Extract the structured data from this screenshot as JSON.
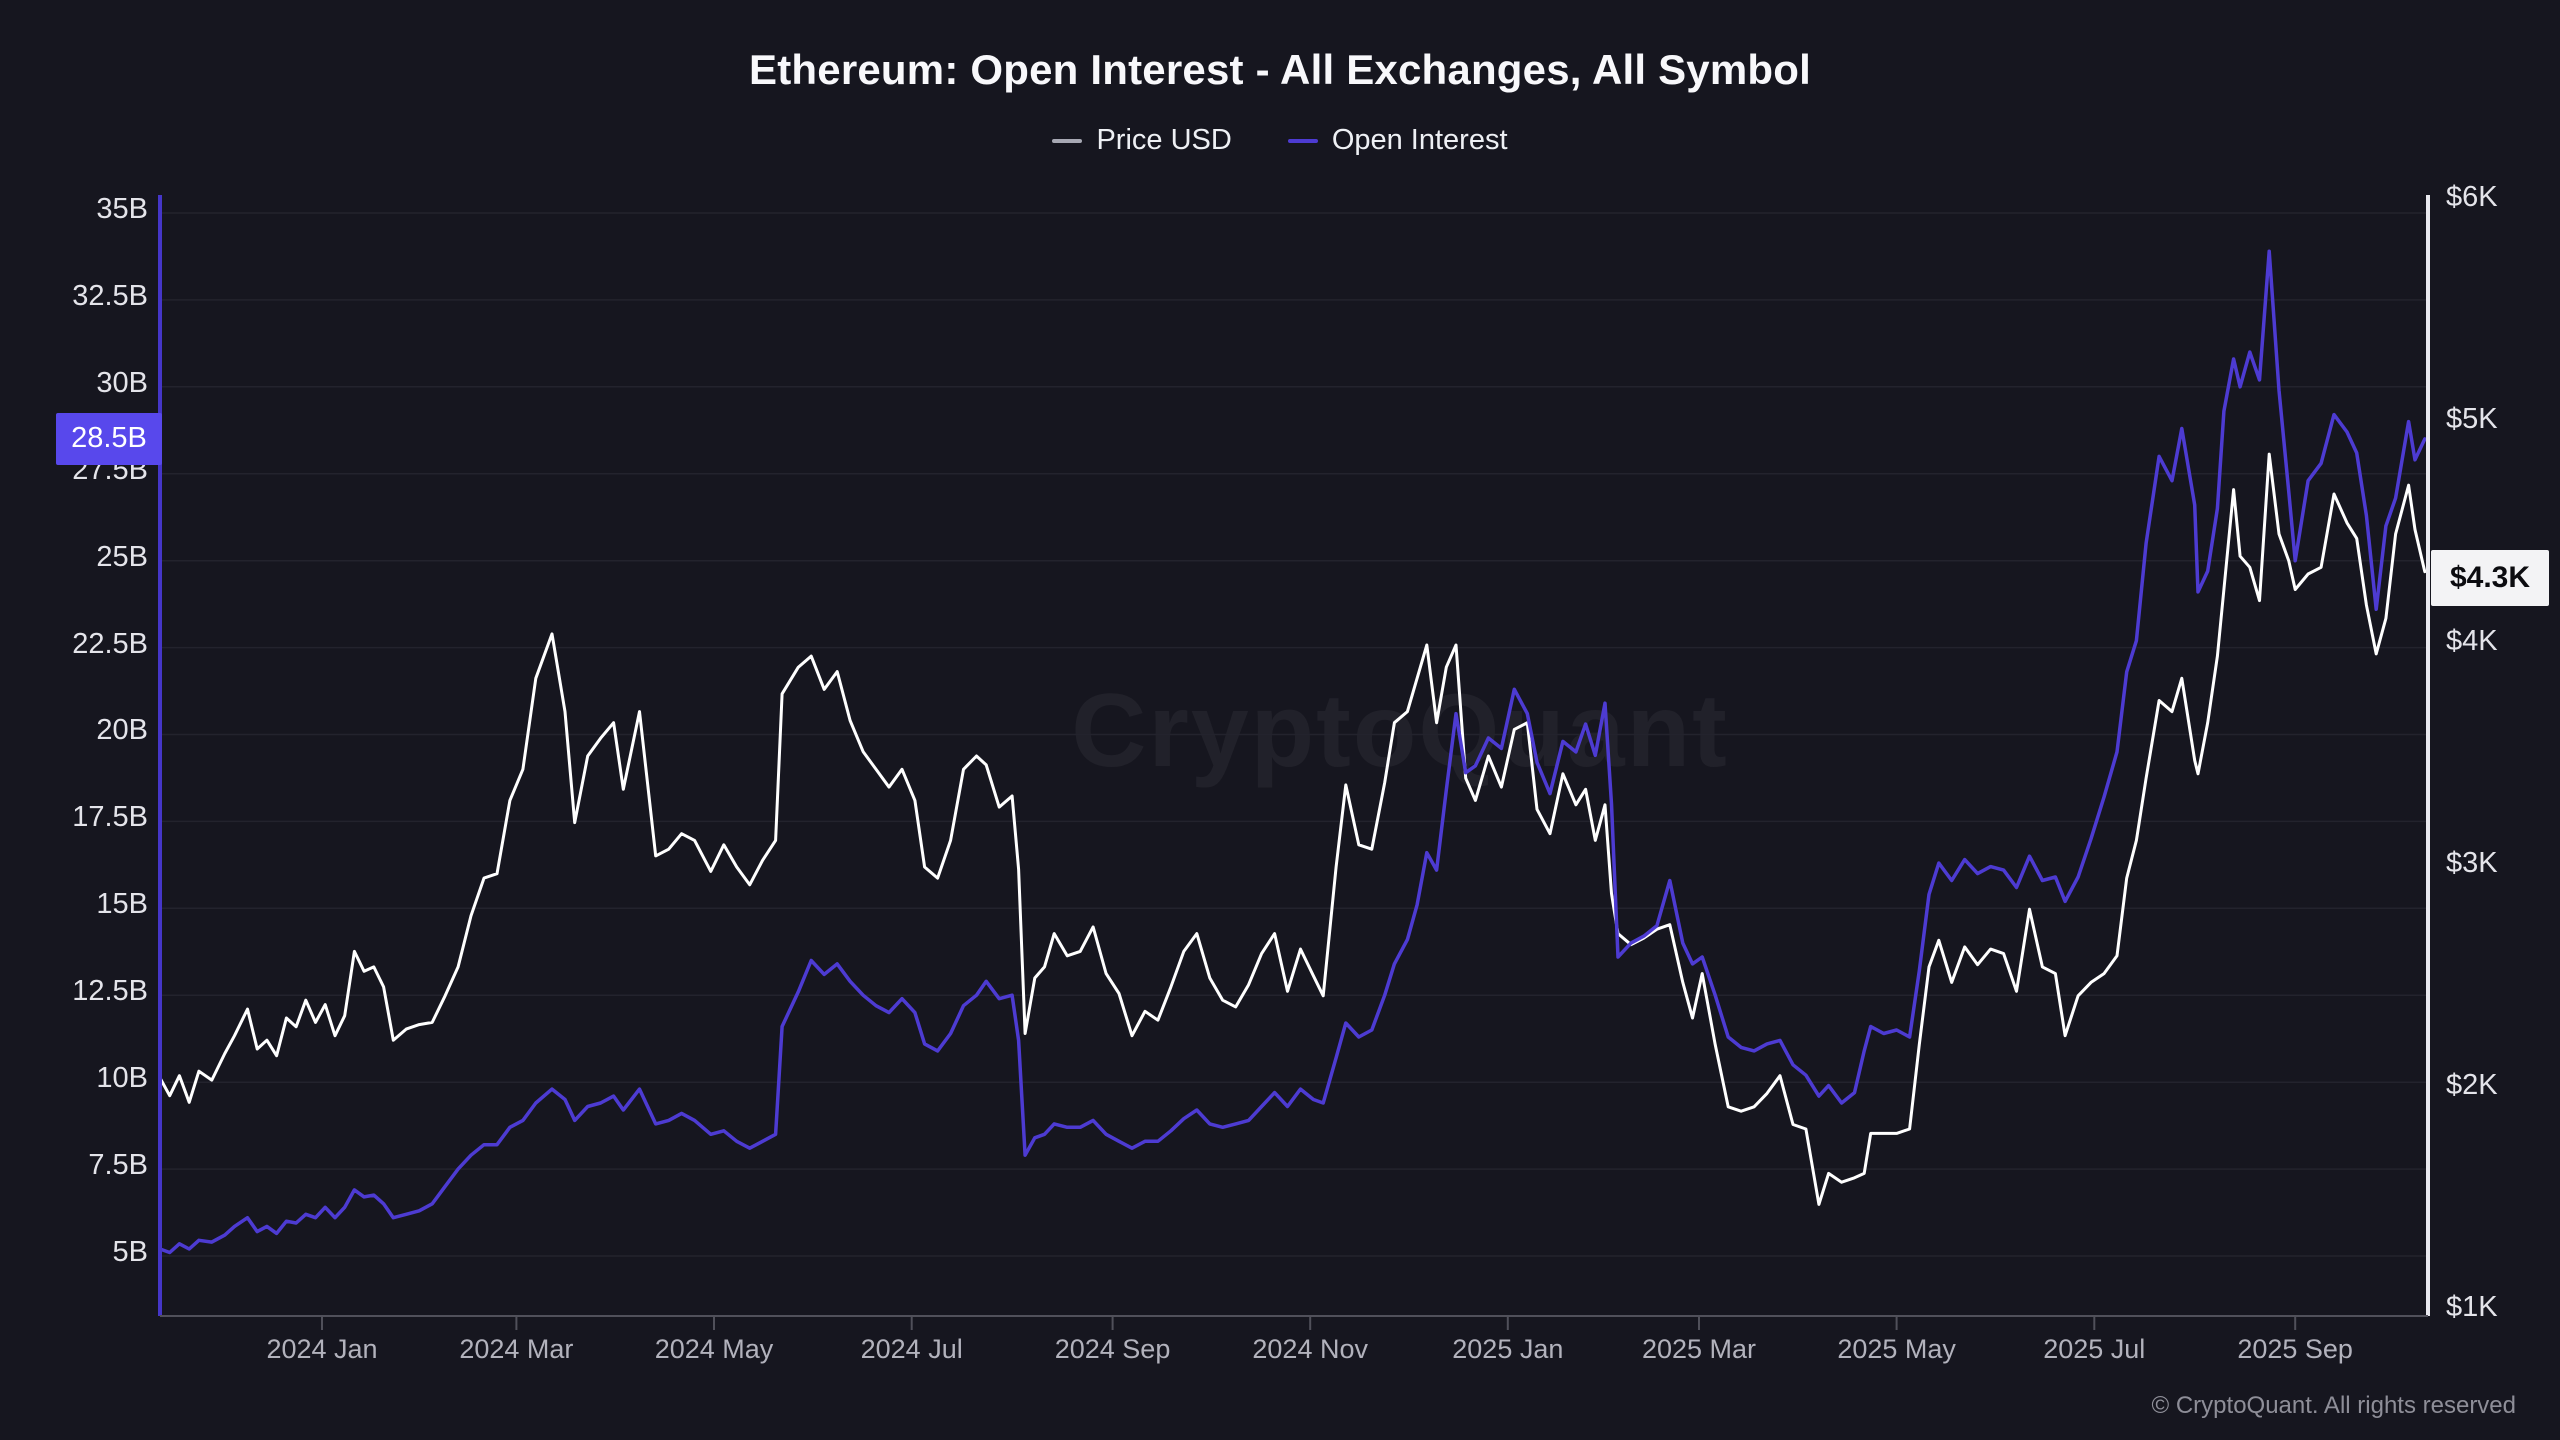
{
  "title": "Ethereum: Open Interest - All Exchanges, All Symbol",
  "legend": [
    {
      "label": "Price USD",
      "swatch_color": "#a7a8b3"
    },
    {
      "label": "Open Interest",
      "swatch_color": "#4d3bd2"
    }
  ],
  "watermark": "CryptoQuant",
  "footer": "© CryptoQuant. All rights reserved",
  "colors": {
    "background": "#16161f",
    "grid": "#23232d",
    "price_line": "#ffffff",
    "oi_line": "#4d3bd2",
    "left_axis_line": "#4536c8",
    "right_axis_line": "#e9e9ef",
    "baseline": "#50505a",
    "left_badge_bg": "#5848ec",
    "right_badge_bg": "#f3f3f5"
  },
  "axes": {
    "left": {
      "unit": "B",
      "tick_labels": [
        "35B",
        "32.5B",
        "30B",
        "27.5B",
        "25B",
        "22.5B",
        "20B",
        "17.5B",
        "15B",
        "12.5B",
        "10B",
        "7.5B",
        "5B"
      ],
      "tick_values": [
        35,
        32.5,
        30,
        27.5,
        25,
        22.5,
        20,
        17.5,
        15,
        12.5,
        10,
        7.5,
        5
      ],
      "highlight": {
        "label": "28.5B",
        "value": 28.5
      }
    },
    "right": {
      "unit": "$K",
      "tick_labels": [
        "$6K",
        "$5K",
        "$4K",
        "$3K",
        "$2K",
        "$1K"
      ],
      "tick_values": [
        6,
        5,
        4,
        3,
        2,
        1
      ],
      "highlight": {
        "label": "$4.3K",
        "value": 4.3
      }
    },
    "x": {
      "ticks": [
        {
          "label": "2024 Jan",
          "date": "2024-01-01"
        },
        {
          "label": "2024 Mar",
          "date": "2024-03-01"
        },
        {
          "label": "2024 May",
          "date": "2024-05-01"
        },
        {
          "label": "2024 Jul",
          "date": "2024-07-01"
        },
        {
          "label": "2024 Sep",
          "date": "2024-09-01"
        },
        {
          "label": "2024 Nov",
          "date": "2024-11-01"
        },
        {
          "label": "2025 Jan",
          "date": "2025-01-01"
        },
        {
          "label": "2025 Mar",
          "date": "2025-03-01"
        },
        {
          "label": "2025 May",
          "date": "2025-05-01"
        },
        {
          "label": "2025 Jul",
          "date": "2025-07-01"
        },
        {
          "label": "2025 Sep",
          "date": "2025-09-01"
        }
      ]
    }
  },
  "chart_data": {
    "type": "line",
    "title": "Ethereum: Open Interest - All Exchanges, All Symbol",
    "x_unit": "date",
    "x_range": [
      "2023-11-12",
      "2025-10-12"
    ],
    "right_axis_range_price_usd_k": [
      1,
      6
    ],
    "left_axis_range_oi_billion_usd": [
      3.3,
      35.6
    ],
    "grid": "horizontal",
    "legend_position": "top-center",
    "series_meta": [
      {
        "name": "Price USD",
        "axis": "right",
        "unit": "USD thousands",
        "color": "#ffffff"
      },
      {
        "name": "Open Interest",
        "axis": "left",
        "unit": "USD billions",
        "color": "#4d3bd2"
      }
    ],
    "columns": [
      "date",
      "price_usd_k",
      "open_interest_billion_usd"
    ],
    "points": [
      [
        "2023-11-12",
        2.05,
        5.2
      ],
      [
        "2023-11-15",
        1.97,
        5.1
      ],
      [
        "2023-11-18",
        2.06,
        5.35
      ],
      [
        "2023-11-21",
        1.94,
        5.2
      ],
      [
        "2023-11-24",
        2.08,
        5.45
      ],
      [
        "2023-11-28",
        2.04,
        5.4
      ],
      [
        "2023-12-02",
        2.16,
        5.6
      ],
      [
        "2023-12-05",
        2.24,
        5.85
      ],
      [
        "2023-12-09",
        2.36,
        6.1
      ],
      [
        "2023-12-12",
        2.18,
        5.7
      ],
      [
        "2023-12-15",
        2.22,
        5.85
      ],
      [
        "2023-12-18",
        2.15,
        5.65
      ],
      [
        "2023-12-21",
        2.32,
        6.0
      ],
      [
        "2023-12-24",
        2.28,
        5.95
      ],
      [
        "2023-12-27",
        2.4,
        6.2
      ],
      [
        "2023-12-30",
        2.3,
        6.1
      ],
      [
        "2024-01-02",
        2.38,
        6.4
      ],
      [
        "2024-01-05",
        2.24,
        6.1
      ],
      [
        "2024-01-08",
        2.33,
        6.4
      ],
      [
        "2024-01-11",
        2.62,
        6.9
      ],
      [
        "2024-01-14",
        2.53,
        6.7
      ],
      [
        "2024-01-17",
        2.55,
        6.75
      ],
      [
        "2024-01-20",
        2.46,
        6.5
      ],
      [
        "2024-01-23",
        2.22,
        6.1
      ],
      [
        "2024-01-27",
        2.27,
        6.2
      ],
      [
        "2024-01-31",
        2.29,
        6.3
      ],
      [
        "2024-02-04",
        2.3,
        6.5
      ],
      [
        "2024-02-08",
        2.42,
        7.0
      ],
      [
        "2024-02-12",
        2.55,
        7.5
      ],
      [
        "2024-02-16",
        2.78,
        7.9
      ],
      [
        "2024-02-20",
        2.95,
        8.2
      ],
      [
        "2024-02-24",
        2.97,
        8.2
      ],
      [
        "2024-02-28",
        3.3,
        8.7
      ],
      [
        "2024-03-03",
        3.44,
        8.9
      ],
      [
        "2024-03-07",
        3.85,
        9.4
      ],
      [
        "2024-03-12",
        4.05,
        9.8
      ],
      [
        "2024-03-16",
        3.7,
        9.5
      ],
      [
        "2024-03-19",
        3.2,
        8.9
      ],
      [
        "2024-03-23",
        3.5,
        9.3
      ],
      [
        "2024-03-27",
        3.58,
        9.4
      ],
      [
        "2024-03-31",
        3.65,
        9.6
      ],
      [
        "2024-04-03",
        3.35,
        9.2
      ],
      [
        "2024-04-08",
        3.7,
        9.8
      ],
      [
        "2024-04-13",
        3.05,
        8.8
      ],
      [
        "2024-04-17",
        3.08,
        8.9
      ],
      [
        "2024-04-21",
        3.15,
        9.1
      ],
      [
        "2024-04-25",
        3.12,
        8.9
      ],
      [
        "2024-04-30",
        2.98,
        8.5
      ],
      [
        "2024-05-04",
        3.1,
        8.6
      ],
      [
        "2024-05-08",
        3.0,
        8.3
      ],
      [
        "2024-05-12",
        2.92,
        8.1
      ],
      [
        "2024-05-16",
        3.03,
        8.3
      ],
      [
        "2024-05-20",
        3.12,
        8.5
      ],
      [
        "2024-05-22",
        3.78,
        11.6
      ],
      [
        "2024-05-27",
        3.9,
        12.6
      ],
      [
        "2024-05-31",
        3.95,
        13.5
      ],
      [
        "2024-06-04",
        3.8,
        13.1
      ],
      [
        "2024-06-08",
        3.88,
        13.4
      ],
      [
        "2024-06-12",
        3.66,
        12.9
      ],
      [
        "2024-06-16",
        3.52,
        12.5
      ],
      [
        "2024-06-20",
        3.44,
        12.2
      ],
      [
        "2024-06-24",
        3.36,
        12.0
      ],
      [
        "2024-06-28",
        3.44,
        12.4
      ],
      [
        "2024-07-02",
        3.3,
        12.0
      ],
      [
        "2024-07-05",
        3.0,
        11.1
      ],
      [
        "2024-07-09",
        2.95,
        10.9
      ],
      [
        "2024-07-13",
        3.12,
        11.4
      ],
      [
        "2024-07-17",
        3.44,
        12.2
      ],
      [
        "2024-07-21",
        3.5,
        12.5
      ],
      [
        "2024-07-24",
        3.46,
        12.9
      ],
      [
        "2024-07-28",
        3.27,
        12.4
      ],
      [
        "2024-08-01",
        3.32,
        12.5
      ],
      [
        "2024-08-03",
        2.99,
        11.2
      ],
      [
        "2024-08-05",
        2.25,
        7.9
      ],
      [
        "2024-08-08",
        2.5,
        8.4
      ],
      [
        "2024-08-11",
        2.55,
        8.5
      ],
      [
        "2024-08-14",
        2.7,
        8.8
      ],
      [
        "2024-08-18",
        2.6,
        8.7
      ],
      [
        "2024-08-22",
        2.62,
        8.7
      ],
      [
        "2024-08-26",
        2.73,
        8.9
      ],
      [
        "2024-08-30",
        2.52,
        8.5
      ],
      [
        "2024-09-03",
        2.43,
        8.3
      ],
      [
        "2024-09-07",
        2.24,
        8.1
      ],
      [
        "2024-09-11",
        2.35,
        8.3
      ],
      [
        "2024-09-15",
        2.31,
        8.3
      ],
      [
        "2024-09-19",
        2.46,
        8.6
      ],
      [
        "2024-09-23",
        2.62,
        8.95
      ],
      [
        "2024-09-27",
        2.7,
        9.2
      ],
      [
        "2024-10-01",
        2.5,
        8.8
      ],
      [
        "2024-10-05",
        2.4,
        8.7
      ],
      [
        "2024-10-09",
        2.37,
        8.8
      ],
      [
        "2024-10-13",
        2.47,
        8.9
      ],
      [
        "2024-10-17",
        2.61,
        9.3
      ],
      [
        "2024-10-21",
        2.7,
        9.7
      ],
      [
        "2024-10-25",
        2.44,
        9.3
      ],
      [
        "2024-10-29",
        2.63,
        9.8
      ],
      [
        "2024-11-02",
        2.51,
        9.5
      ],
      [
        "2024-11-05",
        2.42,
        9.4
      ],
      [
        "2024-11-09",
        3.0,
        10.7
      ],
      [
        "2024-11-12",
        3.37,
        11.7
      ],
      [
        "2024-11-16",
        3.1,
        11.3
      ],
      [
        "2024-11-20",
        3.08,
        11.5
      ],
      [
        "2024-11-24",
        3.38,
        12.5
      ],
      [
        "2024-11-27",
        3.65,
        13.4
      ],
      [
        "2024-12-01",
        3.7,
        14.1
      ],
      [
        "2024-12-04",
        3.85,
        15.1
      ],
      [
        "2024-12-07",
        4.0,
        16.6
      ],
      [
        "2024-12-10",
        3.65,
        16.1
      ],
      [
        "2024-12-13",
        3.9,
        18.4
      ],
      [
        "2024-12-16",
        4.0,
        20.6
      ],
      [
        "2024-12-19",
        3.4,
        18.9
      ],
      [
        "2024-12-22",
        3.3,
        19.1
      ],
      [
        "2024-12-26",
        3.5,
        19.9
      ],
      [
        "2024-12-30",
        3.36,
        19.6
      ],
      [
        "2025-01-03",
        3.62,
        21.3
      ],
      [
        "2025-01-07",
        3.65,
        20.6
      ],
      [
        "2025-01-10",
        3.26,
        19.2
      ],
      [
        "2025-01-14",
        3.15,
        18.3
      ],
      [
        "2025-01-18",
        3.42,
        19.8
      ],
      [
        "2025-01-22",
        3.28,
        19.5
      ],
      [
        "2025-01-25",
        3.35,
        20.3
      ],
      [
        "2025-01-28",
        3.12,
        19.4
      ],
      [
        "2025-01-31",
        3.28,
        20.9
      ],
      [
        "2025-02-02",
        2.88,
        18.0
      ],
      [
        "2025-02-04",
        2.7,
        13.6
      ],
      [
        "2025-02-08",
        2.65,
        14.0
      ],
      [
        "2025-02-12",
        2.68,
        14.2
      ],
      [
        "2025-02-16",
        2.72,
        14.5
      ],
      [
        "2025-02-20",
        2.74,
        15.8
      ],
      [
        "2025-02-24",
        2.48,
        14.0
      ],
      [
        "2025-02-27",
        2.32,
        13.4
      ],
      [
        "2025-03-02",
        2.52,
        13.6
      ],
      [
        "2025-03-06",
        2.2,
        12.5
      ],
      [
        "2025-03-10",
        1.92,
        11.3
      ],
      [
        "2025-03-14",
        1.9,
        11.0
      ],
      [
        "2025-03-18",
        1.92,
        10.9
      ],
      [
        "2025-03-22",
        1.98,
        11.1
      ],
      [
        "2025-03-26",
        2.06,
        11.2
      ],
      [
        "2025-03-30",
        1.84,
        10.5
      ],
      [
        "2025-04-03",
        1.82,
        10.2
      ],
      [
        "2025-04-07",
        1.48,
        9.6
      ],
      [
        "2025-04-10",
        1.62,
        9.9
      ],
      [
        "2025-04-14",
        1.58,
        9.4
      ],
      [
        "2025-04-18",
        1.6,
        9.7
      ],
      [
        "2025-04-21",
        1.62,
        10.9
      ],
      [
        "2025-04-23",
        1.8,
        11.6
      ],
      [
        "2025-04-27",
        1.8,
        11.4
      ],
      [
        "2025-05-01",
        1.8,
        11.5
      ],
      [
        "2025-05-05",
        1.82,
        11.3
      ],
      [
        "2025-05-08",
        2.2,
        13.2
      ],
      [
        "2025-05-11",
        2.55,
        15.4
      ],
      [
        "2025-05-14",
        2.67,
        16.3
      ],
      [
        "2025-05-18",
        2.48,
        15.8
      ],
      [
        "2025-05-22",
        2.64,
        16.4
      ],
      [
        "2025-05-26",
        2.56,
        16.0
      ],
      [
        "2025-05-30",
        2.63,
        16.2
      ],
      [
        "2025-06-03",
        2.61,
        16.1
      ],
      [
        "2025-06-07",
        2.44,
        15.6
      ],
      [
        "2025-06-11",
        2.81,
        16.5
      ],
      [
        "2025-06-15",
        2.55,
        15.8
      ],
      [
        "2025-06-19",
        2.52,
        15.9
      ],
      [
        "2025-06-22",
        2.24,
        15.2
      ],
      [
        "2025-06-26",
        2.42,
        15.9
      ],
      [
        "2025-06-30",
        2.48,
        17.0
      ],
      [
        "2025-07-04",
        2.52,
        18.2
      ],
      [
        "2025-07-08",
        2.6,
        19.5
      ],
      [
        "2025-07-11",
        2.95,
        21.8
      ],
      [
        "2025-07-14",
        3.12,
        22.7
      ],
      [
        "2025-07-17",
        3.4,
        25.5
      ],
      [
        "2025-07-21",
        3.75,
        28.0
      ],
      [
        "2025-07-25",
        3.7,
        27.3
      ],
      [
        "2025-07-28",
        3.85,
        28.8
      ],
      [
        "2025-08-01",
        3.48,
        26.6
      ],
      [
        "2025-08-02",
        3.42,
        24.1
      ],
      [
        "2025-08-05",
        3.65,
        24.7
      ],
      [
        "2025-08-08",
        3.95,
        26.5
      ],
      [
        "2025-08-10",
        4.25,
        29.3
      ],
      [
        "2025-08-13",
        4.7,
        30.8
      ],
      [
        "2025-08-15",
        4.4,
        30.0
      ],
      [
        "2025-08-18",
        4.35,
        31.0
      ],
      [
        "2025-08-21",
        4.2,
        30.2
      ],
      [
        "2025-08-24",
        4.86,
        33.9
      ],
      [
        "2025-08-27",
        4.5,
        29.9
      ],
      [
        "2025-08-30",
        4.38,
        27.0
      ],
      [
        "2025-09-01",
        4.25,
        25.0
      ],
      [
        "2025-09-05",
        4.32,
        27.3
      ],
      [
        "2025-09-09",
        4.35,
        27.8
      ],
      [
        "2025-09-13",
        4.68,
        29.2
      ],
      [
        "2025-09-17",
        4.55,
        28.7
      ],
      [
        "2025-09-20",
        4.48,
        28.1
      ],
      [
        "2025-09-23",
        4.18,
        26.3
      ],
      [
        "2025-09-26",
        3.96,
        23.6
      ],
      [
        "2025-09-29",
        4.12,
        26.0
      ],
      [
        "2025-10-02",
        4.5,
        26.8
      ],
      [
        "2025-10-06",
        4.72,
        29.0
      ],
      [
        "2025-10-08",
        4.52,
        27.9
      ],
      [
        "2025-10-11",
        4.33,
        28.5
      ]
    ]
  }
}
